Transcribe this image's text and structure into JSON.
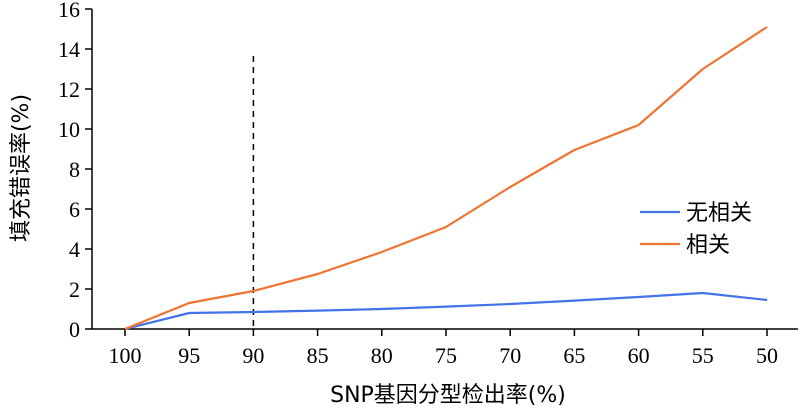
{
  "chart_data": {
    "type": "line",
    "xlabel": "SNP基因分型检出率(%)",
    "ylabel": "填充错误率(%)",
    "categories": [
      "100",
      "95",
      "90",
      "85",
      "80",
      "75",
      "70",
      "65",
      "60",
      "55",
      "50"
    ],
    "ylim": [
      0,
      16
    ],
    "yticks": [
      0,
      2,
      4,
      6,
      8,
      10,
      12,
      14,
      16
    ],
    "series": [
      {
        "name": "无相关",
        "color": "#4472e8",
        "values": [
          0,
          0.8,
          0.85,
          0.92,
          1.0,
          1.12,
          1.25,
          1.42,
          1.6,
          1.8,
          1.45
        ]
      },
      {
        "name": "相关",
        "color": "#ee7430",
        "values": [
          0,
          1.3,
          1.9,
          2.75,
          3.85,
          5.1,
          7.1,
          8.95,
          10.2,
          13.0,
          15.1
        ]
      }
    ],
    "reference_line": {
      "x": "90",
      "style": "dashed",
      "color": "#000000"
    },
    "legend_position": "right",
    "grid": false
  }
}
